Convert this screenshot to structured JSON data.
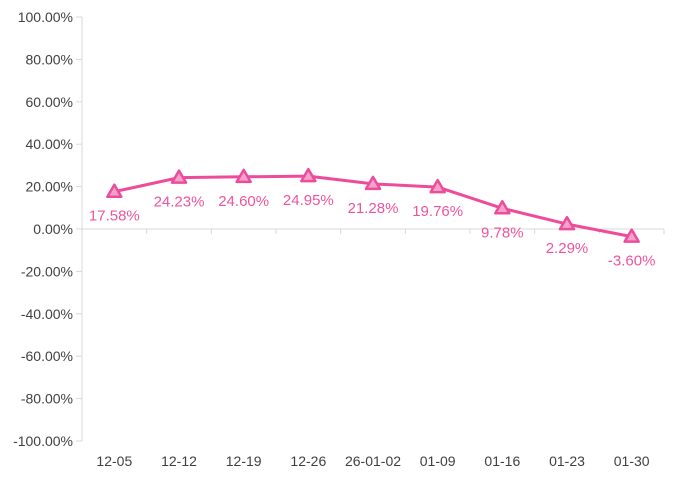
{
  "chart_data": {
    "type": "line",
    "title": "",
    "xlabel": "",
    "ylabel": "",
    "categories": [
      "12-05",
      "12-12",
      "12-19",
      "12-26",
      "26-01-02",
      "01-09",
      "01-16",
      "01-23",
      "01-30"
    ],
    "series": [
      {
        "name": "",
        "values": [
          17.58,
          24.23,
          24.6,
          24.95,
          21.28,
          19.76,
          9.78,
          2.29,
          -3.6
        ],
        "data_labels": [
          "17.58%",
          "24.23%",
          "24.60%",
          "24.95%",
          "21.28%",
          "19.76%",
          "9.78%",
          "2.29%",
          "-3.60%"
        ],
        "marker": "triangle-up"
      }
    ],
    "y_ticks": [
      {
        "value": 100,
        "label": "100.00%"
      },
      {
        "value": 80,
        "label": "80.00%"
      },
      {
        "value": 60,
        "label": "60.00%"
      },
      {
        "value": 40,
        "label": "40.00%"
      },
      {
        "value": 20,
        "label": "20.00%"
      },
      {
        "value": 0,
        "label": "0.00%"
      },
      {
        "value": -20,
        "label": "-20.00%"
      },
      {
        "value": -40,
        "label": "-40.00%"
      },
      {
        "value": -60,
        "label": "-60.00%"
      },
      {
        "value": -80,
        "label": "-80.00%"
      },
      {
        "value": -100,
        "label": "-100.00%"
      }
    ],
    "ylim": [
      -100,
      100
    ],
    "grid": false,
    "legend_position": "none",
    "colors": {
      "line": "#EC4C9B",
      "marker_fill": "#F3A3CA",
      "marker_stroke": "#EC4C9B",
      "data_label": "#EE549E",
      "axis_line": "#D9D9D9",
      "axis_text": "#404040",
      "background": "#FFFFFF"
    }
  }
}
